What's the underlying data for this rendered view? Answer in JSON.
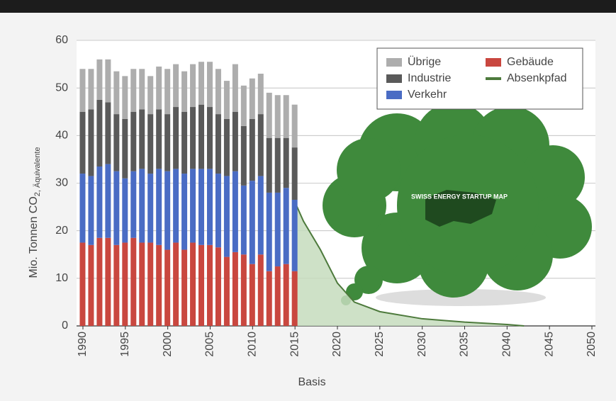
{
  "chart_data": {
    "type": "bar",
    "y_label": "Mio. Tonnen CO",
    "y_label_sub": "2, Äquivalente",
    "x_label": "Basis",
    "annotations": [
      "SWISS ENERGY STARTUP MAP"
    ],
    "x": [
      1990,
      1991,
      1992,
      1993,
      1994,
      1995,
      1996,
      1997,
      1998,
      1999,
      2000,
      2001,
      2002,
      2003,
      2004,
      2005,
      2006,
      2007,
      2008,
      2009,
      2010,
      2011,
      2012,
      2013,
      2014,
      2015
    ],
    "series": [
      {
        "name": "Gebäude",
        "color": "#c9473f",
        "values": [
          17.5,
          17,
          18.5,
          18.5,
          17,
          17.5,
          18.5,
          17.5,
          17.5,
          17,
          16,
          17.5,
          16,
          17.5,
          17,
          17,
          16.5,
          14.5,
          15.5,
          15,
          13,
          15,
          11.5,
          12.5,
          13,
          11.5
        ]
      },
      {
        "name": "Verkehr",
        "color": "#4a6cc4",
        "values": [
          14.5,
          14.5,
          15,
          15.5,
          15.5,
          13.5,
          14,
          15.5,
          14.5,
          16,
          16.5,
          15.5,
          16,
          15.5,
          16,
          16,
          15.5,
          17,
          17,
          14.5,
          17.5,
          16.5,
          16.5,
          15.5,
          16,
          15
        ]
      },
      {
        "name": "Industrie",
        "color": "#5a5a5a",
        "values": [
          13,
          14,
          14,
          13,
          12,
          12.5,
          12.5,
          12.5,
          12.5,
          12.5,
          12,
          13,
          13,
          13,
          13.5,
          13,
          12.5,
          12,
          12.5,
          12.5,
          13,
          13,
          11.5,
          11.5,
          10.5,
          11
        ]
      },
      {
        "name": "Übrige",
        "color": "#adadad",
        "values": [
          9,
          8.5,
          8.5,
          9,
          9,
          9,
          9,
          8.5,
          8,
          9,
          9.5,
          9,
          8.5,
          9,
          9,
          9.5,
          9.5,
          8,
          10,
          8.5,
          8.5,
          8.5,
          9.5,
          9,
          9,
          9
        ]
      }
    ],
    "line": {
      "name": "Absenkpfad",
      "color": "#4d7a3c",
      "fill": "#c5dcbd",
      "x": [
        2015,
        2016,
        2018,
        2020,
        2022,
        2025,
        2030,
        2035,
        2040,
        2042
      ],
      "values": [
        26,
        22,
        16,
        9,
        5,
        3,
        1.5,
        0.8,
        0.3,
        0
      ]
    },
    "xlim": [
      1989.5,
      2050
    ],
    "xticks": [
      1990,
      1995,
      2000,
      2005,
      2010,
      2015,
      2020,
      2025,
      2030,
      2035,
      2040,
      2045,
      2050
    ],
    "ylim": [
      0,
      60
    ],
    "yticks": [
      0,
      10,
      20,
      30,
      40,
      50,
      60
    ],
    "grid": true
  }
}
